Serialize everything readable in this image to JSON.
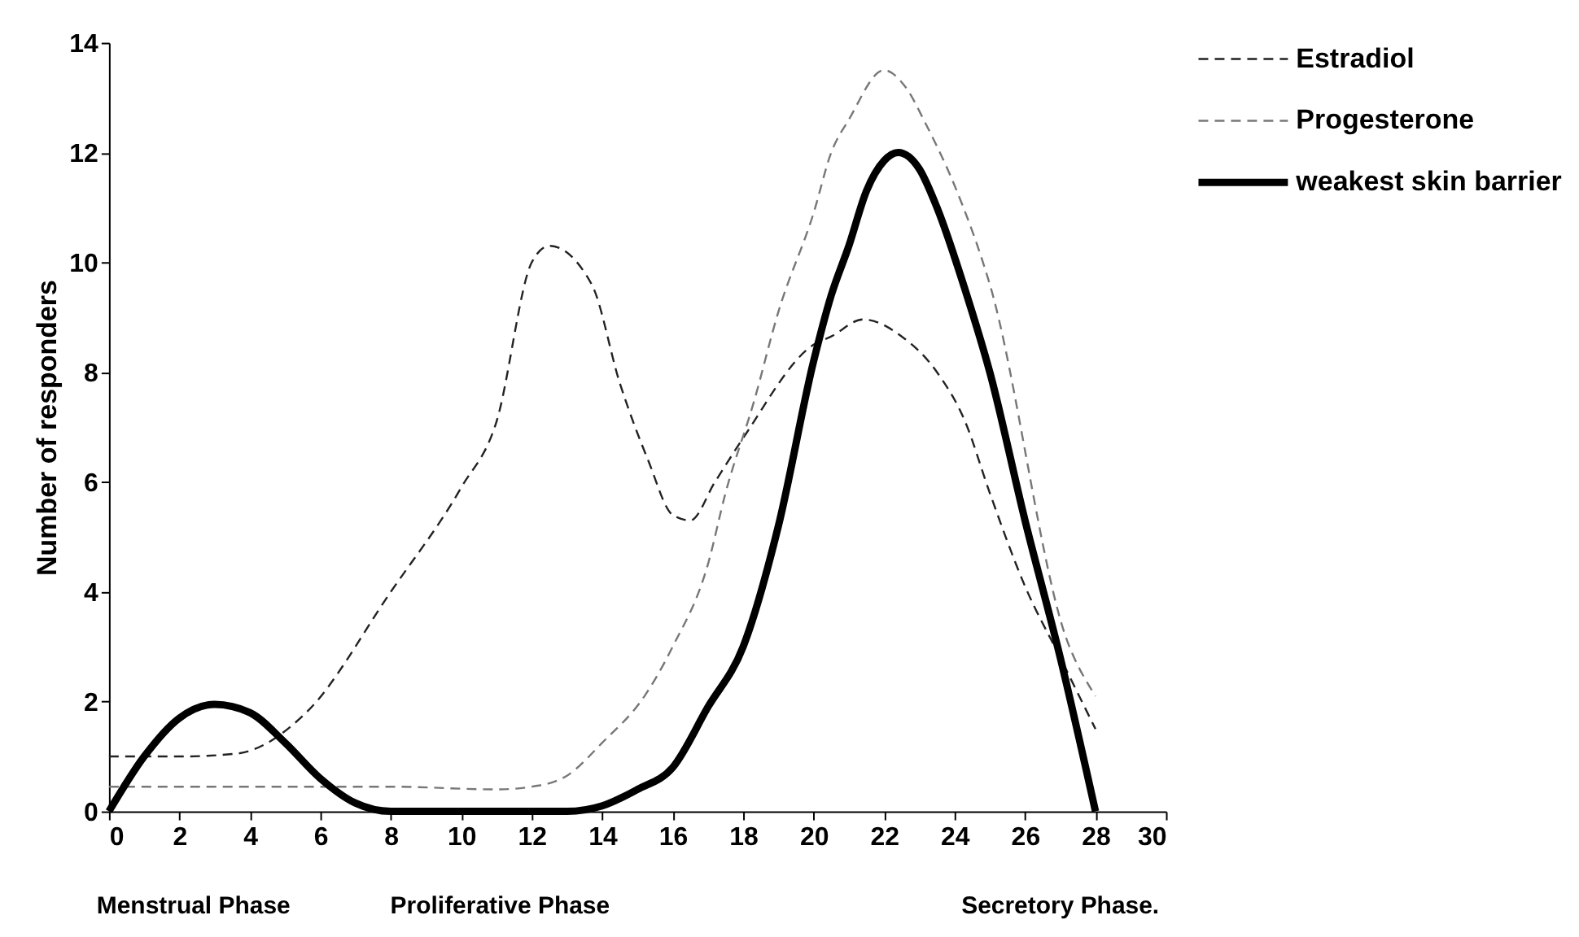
{
  "chart_data": {
    "type": "line",
    "ylabel": "Number of responders",
    "xlim": [
      0,
      30
    ],
    "xticks": [
      0,
      2,
      4,
      6,
      8,
      10,
      12,
      14,
      16,
      18,
      20,
      22,
      24,
      26,
      28,
      30
    ],
    "ylim": [
      0,
      14
    ],
    "yticks": [
      0,
      2,
      4,
      6,
      8,
      10,
      12,
      14
    ],
    "grid": false,
    "legend": "top right",
    "marker": "none",
    "annotations": [
      "Menstrual Phase",
      "Proliferative Phase",
      "Secretory Phase."
    ],
    "series": [
      {
        "name": "Estradiol",
        "color": "#222222",
        "line_style": "dashed",
        "x": [
          0,
          2,
          3.6,
          5.6,
          8,
          10,
          11,
          12,
          12.5,
          13.7,
          14.5,
          15.3,
          16,
          16.5,
          17.2,
          18,
          20,
          20.5,
          21.4,
          22.5,
          23.5,
          24.3,
          25,
          26,
          27,
          28
        ],
        "values": [
          1.0,
          1.0,
          1.05,
          1.8,
          4.0,
          5.9,
          7.1,
          10.0,
          10.3,
          9.6,
          7.8,
          6.4,
          5.4,
          5.3,
          6.0,
          6.8,
          8.5,
          8.65,
          8.96,
          8.65,
          8.0,
          7.1,
          5.8,
          4.1,
          2.8,
          1.5
        ]
      },
      {
        "name": "Progesterone",
        "color": "#777777",
        "line_style": "dashed",
        "x": [
          0,
          8,
          11,
          12,
          13,
          14,
          15.2,
          16,
          17,
          17.5,
          18.3,
          19,
          20,
          20.5,
          21,
          22,
          22.6,
          23.2,
          24,
          25,
          27.2,
          28
        ],
        "values": [
          0.45,
          0.45,
          0.4,
          0.45,
          0.65,
          1.25,
          2.1,
          3.0,
          4.5,
          5.8,
          7.45,
          9.1,
          10.9,
          12.0,
          12.6,
          13.5,
          13.2,
          12.5,
          11.4,
          9.6,
          3.1,
          2.1
        ]
      },
      {
        "name": "weakest skin barrier",
        "color": "#000000",
        "line_style": "solid",
        "x": [
          0,
          1,
          2,
          3,
          4,
          5,
          6,
          7,
          8,
          13,
          14,
          15,
          16,
          17,
          18,
          19,
          20,
          20.5,
          21,
          21.5,
          22,
          22.4,
          23,
          23.5,
          24.3,
          25,
          26,
          27,
          28
        ],
        "values": [
          0,
          1.0,
          1.7,
          1.95,
          1.8,
          1.25,
          0.6,
          0.15,
          0,
          0,
          0.1,
          0.4,
          0.8,
          1.9,
          3.0,
          5.2,
          8.2,
          9.4,
          10.3,
          11.3,
          11.85,
          12.0,
          11.7,
          11.0,
          9.5,
          8.0,
          5.3,
          2.8,
          0
        ]
      }
    ]
  }
}
